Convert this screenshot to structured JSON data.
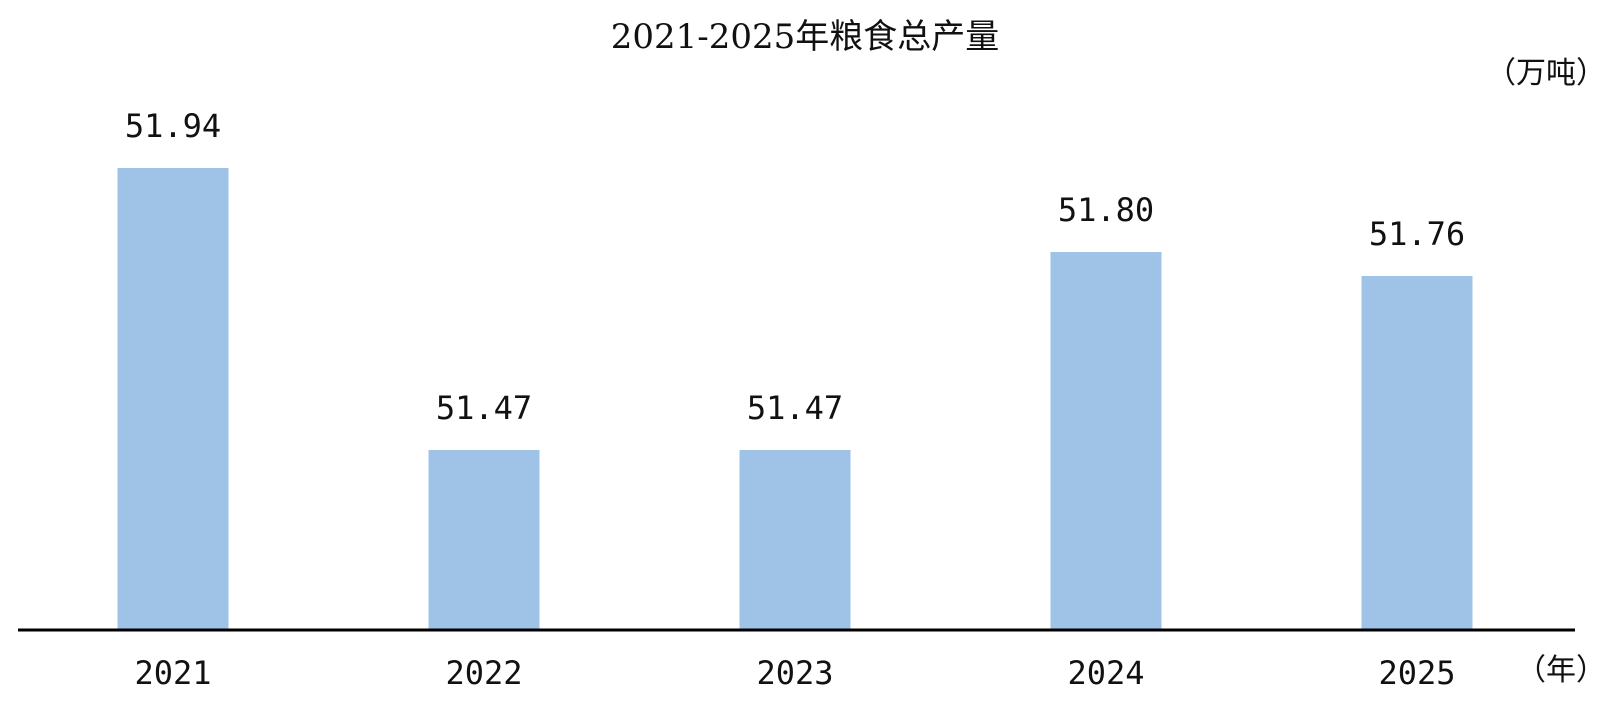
{
  "chart_data": {
    "type": "bar",
    "title": "2021-2025年粮食总产量",
    "y_unit": "（万吨）",
    "x_unit": "（年）",
    "categories": [
      "2021",
      "2022",
      "2023",
      "2024",
      "2025"
    ],
    "values": [
      51.94,
      51.47,
      51.47,
      51.8,
      51.76
    ],
    "value_labels": [
      "51.94",
      "51.47",
      "51.47",
      "51.80",
      "51.76"
    ],
    "ylim": [
      51.17,
      51.94
    ],
    "grid": false,
    "legend": "none",
    "bar_color": "#9FC3E7",
    "axis_color": "#000000"
  }
}
